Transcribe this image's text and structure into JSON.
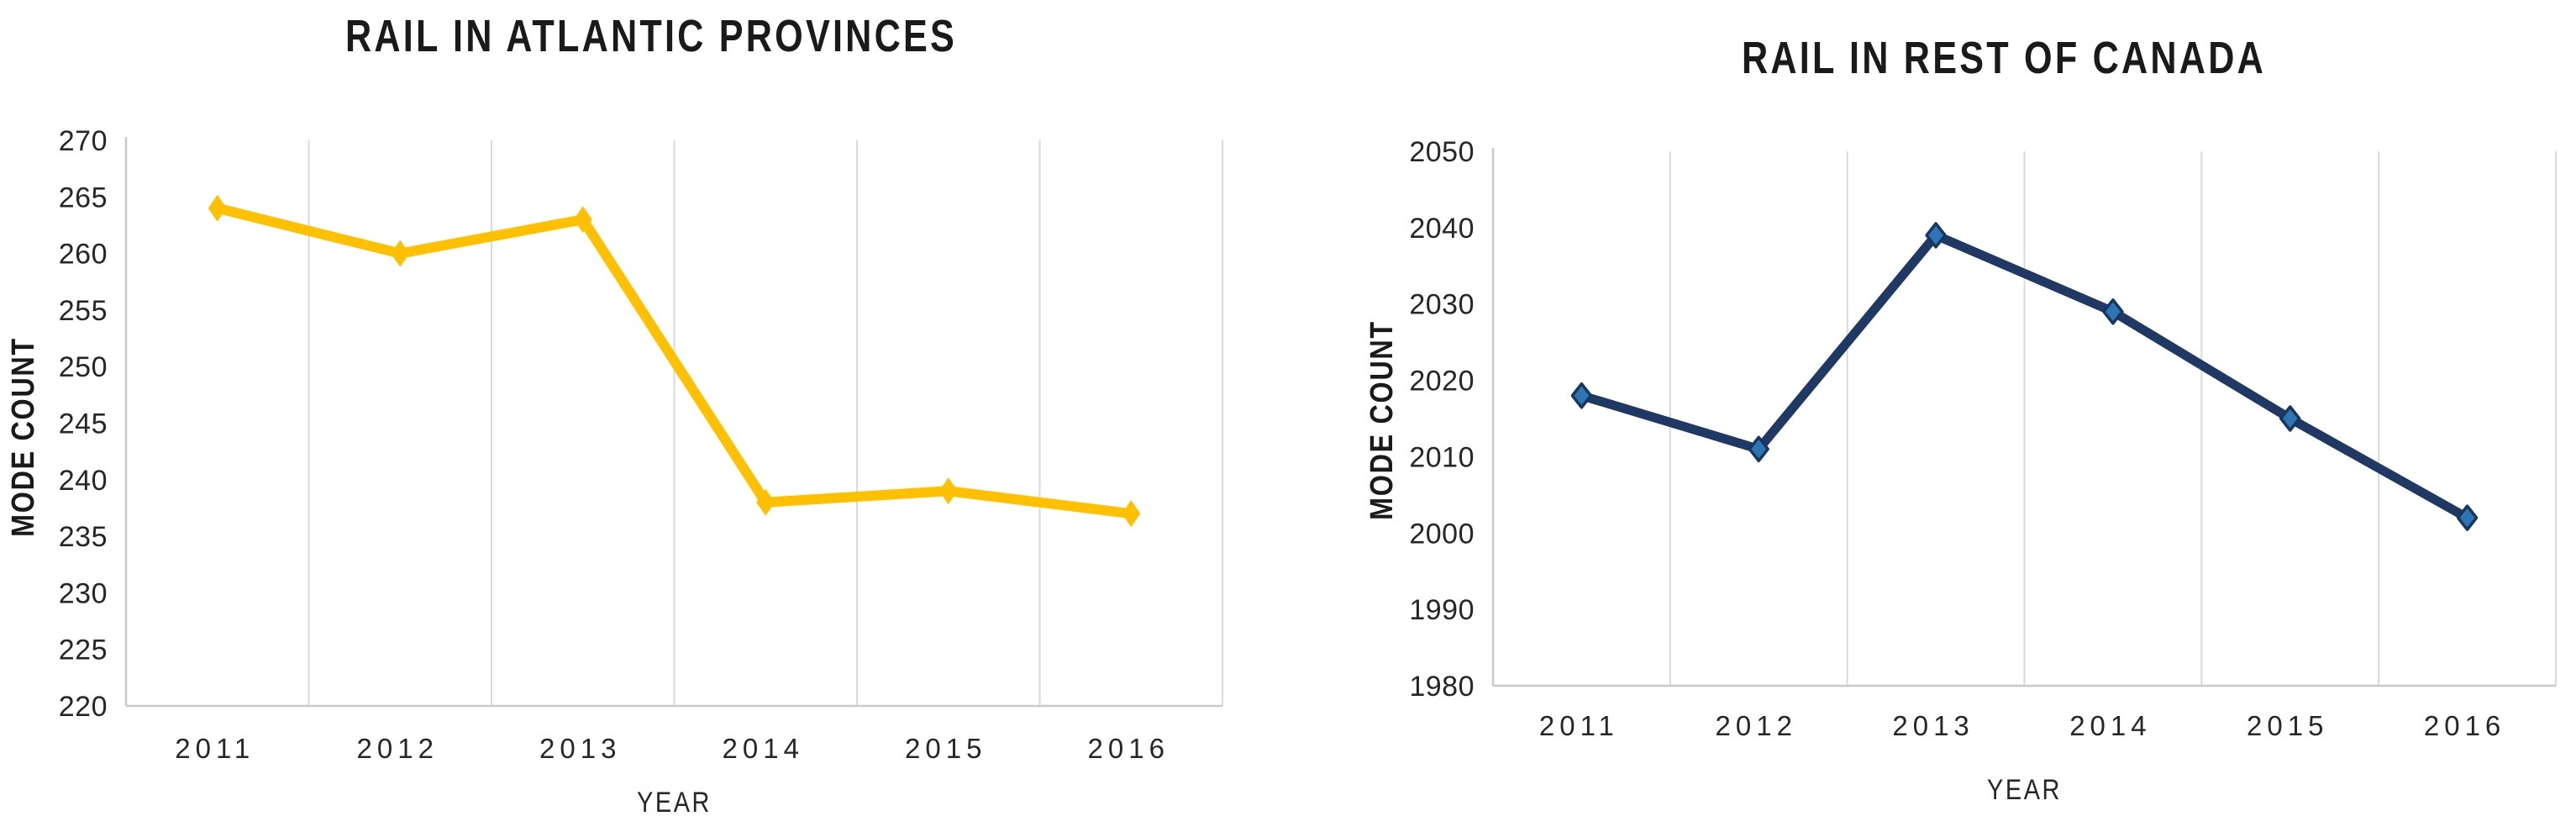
{
  "page": {
    "background_color": "#ffffff",
    "text_color": "#262626",
    "gridline_color": "#d9d9d9",
    "axis_color": "#c9c9c9"
  },
  "chart_data": [
    {
      "type": "line",
      "title": "RAIL IN ATLANTIC PROVINCES",
      "xlabel": "YEAR",
      "ylabel": "MODE COUNT",
      "categories": [
        "2011",
        "2012",
        "2013",
        "2014",
        "2015",
        "2016"
      ],
      "values": [
        264,
        260,
        263,
        238,
        239,
        237
      ],
      "ylim": [
        220,
        270
      ],
      "ytick_step": 5,
      "yticks": [
        220,
        225,
        230,
        235,
        240,
        245,
        250,
        255,
        260,
        265,
        270
      ],
      "grid": "vertical-only",
      "legend": "none",
      "line_color": "#FFC000",
      "marker_shape": "diamond",
      "marker_fill": "#FFC000",
      "marker_border": "#FFC000"
    },
    {
      "type": "line",
      "title": "RAIL IN REST OF CANADA",
      "xlabel": "YEAR",
      "ylabel": "MODE COUNT",
      "categories": [
        "2011",
        "2012",
        "2013",
        "2014",
        "2015",
        "2016"
      ],
      "values": [
        2018,
        2011,
        2039,
        2029,
        2015,
        2002
      ],
      "ylim": [
        1980,
        2050
      ],
      "ytick_step": 10,
      "yticks": [
        1980,
        1990,
        2000,
        2010,
        2020,
        2030,
        2040,
        2050
      ],
      "grid": "vertical-only",
      "legend": "none",
      "line_color": "#1F3864",
      "marker_shape": "diamond",
      "marker_fill": "#2E75B6",
      "marker_border": "#17375E"
    }
  ]
}
